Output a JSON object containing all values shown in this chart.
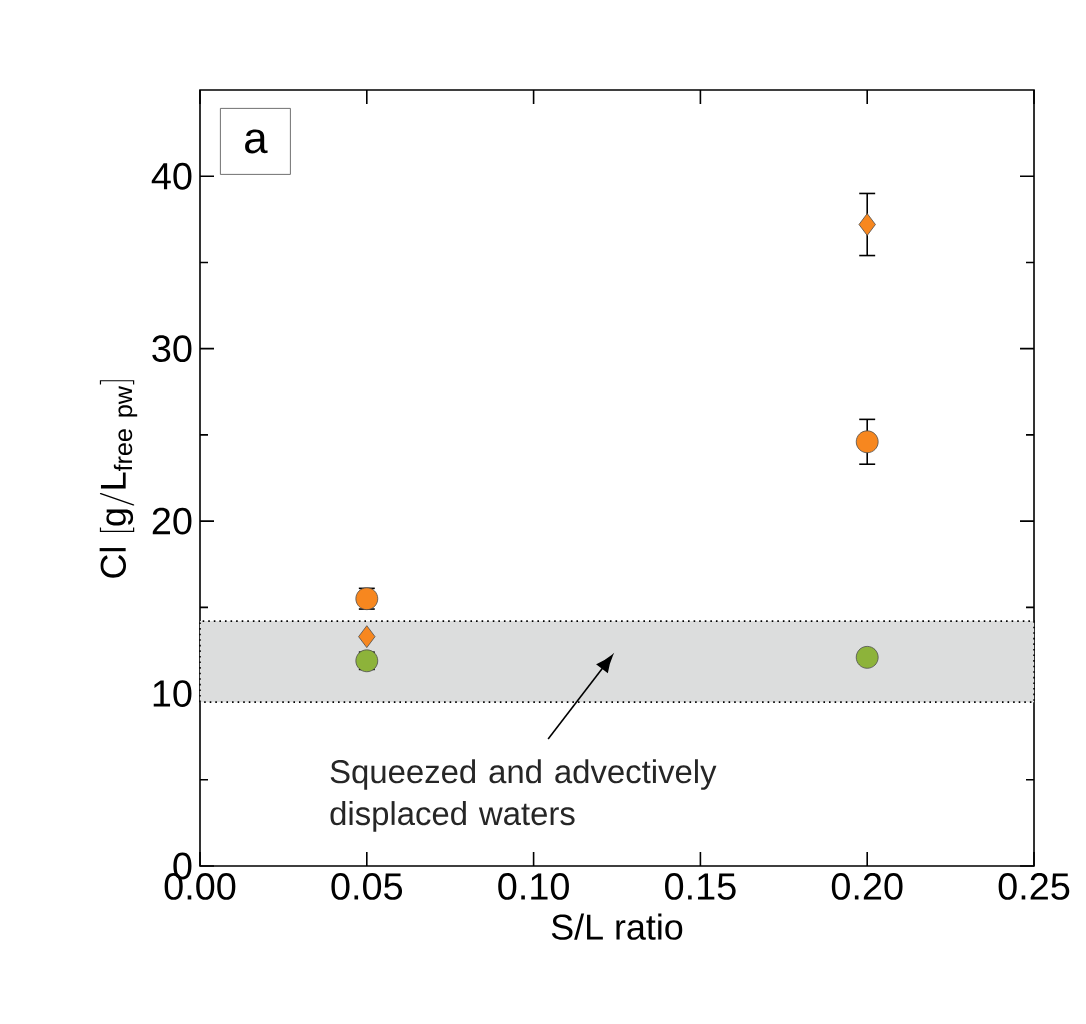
{
  "chart_data": {
    "type": "scatter",
    "xlabel": "S/L ratio",
    "ylabel": "\\mathrm{Cl\\ [g/L_{free\\ pw}]}",
    "xlim": [
      0,
      0.25
    ],
    "xticks": [
      {
        "value": 0,
        "label": "0.00"
      },
      0.05,
      {
        "value": 0.1,
        "label": "0.10"
      },
      0.15,
      {
        "value": 0.2,
        "label": "0.20"
      },
      0.25
    ],
    "ylim": [
      0,
      45
    ],
    "yticks": [
      0,
      10,
      20,
      30,
      40
    ],
    "x": [
      0.05,
      0.2
    ],
    "series": [
      {
        "color": "#f7871f",
        "marker": "circle",
        "values": [
          15.5,
          24.6
        ],
        "errors": [
          0.6,
          1.3
        ]
      },
      {
        "color": "#f7871f",
        "marker": "diamond",
        "values": [
          13.3,
          37.2
        ],
        "errors": [
          null,
          1.8
        ]
      },
      {
        "color": "#8db33a",
        "marker": "circle",
        "values": [
          11.9,
          12.1
        ],
        "errors": [
          0.5,
          0.4
        ]
      }
    ],
    "bands": [
      {
        "axis": "y",
        "from": 9.5,
        "to": 14.2,
        "color": "#dcdddd"
      }
    ],
    "annotations": [
      "a",
      "Squeezed and advectively displaced waters"
    ]
  }
}
